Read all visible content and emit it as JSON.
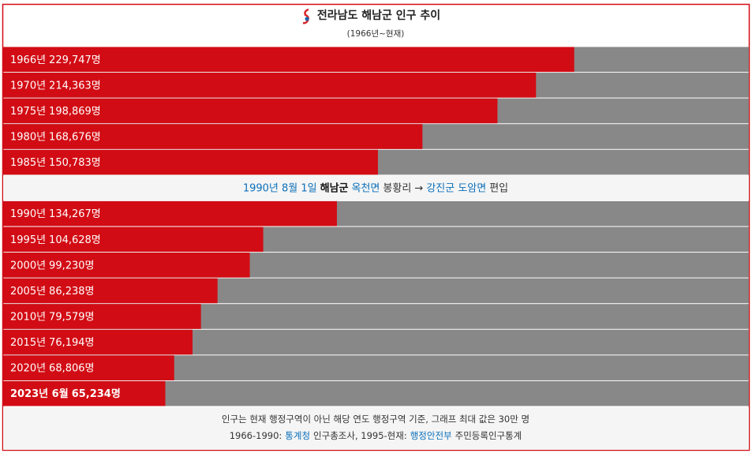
{
  "chart_data": {
    "type": "bar",
    "orientation": "horizontal",
    "title": "전라남도 해남군 인구 추이",
    "subtitle": "(1966년~현재)",
    "categories": [
      "1966년",
      "1970년",
      "1975년",
      "1980년",
      "1985년",
      "1990년",
      "1995년",
      "2000년",
      "2005년",
      "2010년",
      "2015년",
      "2020년",
      "2023년 6월"
    ],
    "values": [
      229747,
      214363,
      198869,
      168676,
      150783,
      134267,
      104628,
      99230,
      86238,
      79579,
      76194,
      68806,
      65234
    ],
    "value_labels": [
      "229,747명",
      "214,363명",
      "198,869명",
      "168,676명",
      "150,783명",
      "134,267명",
      "104,628명",
      "99,230명",
      "86,238명",
      "79,579명",
      "76,194명",
      "68,806명",
      "65,234명"
    ],
    "bold": [
      false,
      false,
      false,
      false,
      false,
      false,
      false,
      false,
      false,
      false,
      false,
      false,
      true
    ],
    "color": "#d20c14",
    "track_color": "#888888",
    "link_color": "#0b6fba",
    "xlim": [
      0,
      300000
    ],
    "note": [
      {
        "text": "1990년 8월 1일",
        "link": true
      },
      {
        "text": "해남군",
        "bold": true
      },
      {
        "text": "옥천면",
        "link": true
      },
      {
        "text": "봉황리 →"
      },
      {
        "text": "강진군 도암면",
        "link": true
      },
      {
        "text": "편입"
      }
    ],
    "footer": [
      [
        {
          "text": "인구는 현재 행정구역이 아닌 해당 연도 행정구역 기준, 그래프 최대 값은 30만 명"
        }
      ],
      [
        {
          "text": "1966-1990:"
        },
        {
          "text": "통계청",
          "link": true
        },
        {
          "text": "인구총조사, 1995-현재:"
        },
        {
          "text": "행정안전부",
          "link": true
        },
        {
          "text": "주민등록인구통계"
        }
      ]
    ]
  }
}
